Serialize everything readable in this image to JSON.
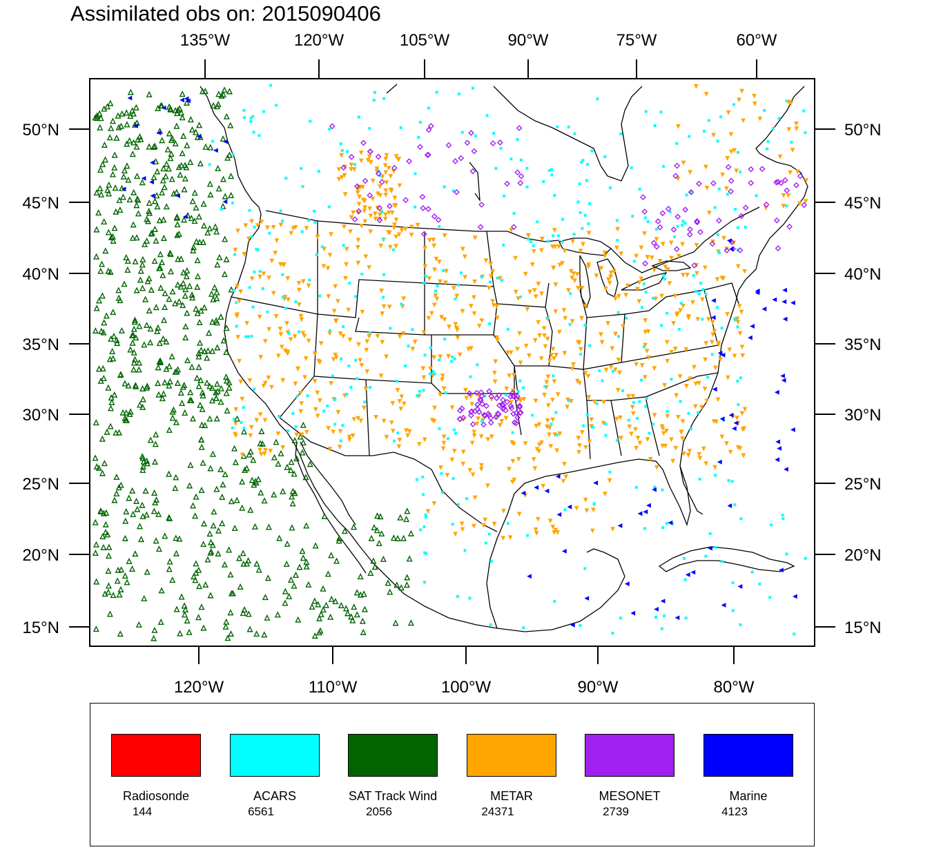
{
  "title": "Assimilated obs on: 2015090406",
  "axes": {
    "top_ticks": [
      "135°W",
      "120°W",
      "105°W",
      "90°W",
      "75°W",
      "60°W"
    ],
    "bottom_ticks": [
      "120°W",
      "110°W",
      "100°W",
      "90°W",
      "80°W"
    ],
    "left_ticks": [
      "50°N",
      "45°N",
      "40°N",
      "35°N",
      "30°N",
      "25°N",
      "20°N",
      "15°N"
    ],
    "right_ticks": [
      "50°N",
      "45°N",
      "40°N",
      "35°N",
      "30°N",
      "25°N",
      "20°N",
      "15°N"
    ]
  },
  "legend": [
    {
      "label": "Radiosonde",
      "count": "144",
      "color": "#ff0000",
      "marker": "circle"
    },
    {
      "label": "ACARS",
      "count": "6561",
      "color": "#00ffff",
      "marker": "square"
    },
    {
      "label": "SAT Track Wind",
      "count": "2056",
      "color": "#006400",
      "marker": "triangle-up"
    },
    {
      "label": "METAR",
      "count": "24371",
      "color": "#ffa500",
      "marker": "triangle-down"
    },
    {
      "label": "MESONET",
      "count": "2739",
      "color": "#a020f0",
      "marker": "diamond"
    },
    {
      "label": "Marine",
      "count": "4123",
      "color": "#0000ff",
      "marker": "triangle-left"
    }
  ]
}
